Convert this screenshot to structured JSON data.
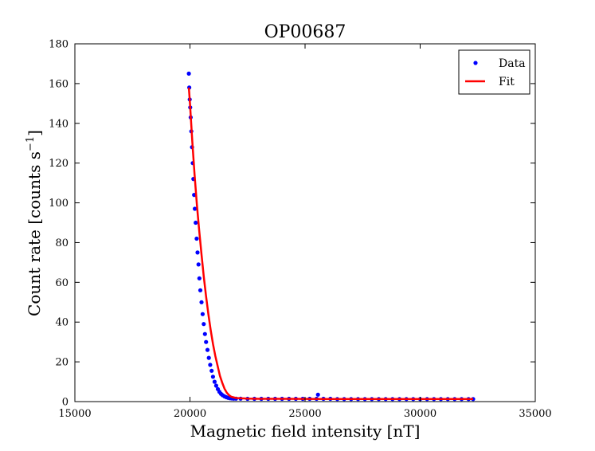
{
  "chart_data": {
    "type": "scatter",
    "title": "OP00687",
    "xlabel": "Magnetic field intensity [nT]",
    "ylabel_main": "Count rate [counts s",
    "ylabel_sup": "−1",
    "ylabel_end": "]",
    "xlim": [
      15000,
      35000
    ],
    "ylim": [
      0,
      180
    ],
    "xticks": [
      15000,
      20000,
      25000,
      30000,
      35000
    ],
    "yticks": [
      0,
      20,
      40,
      60,
      80,
      100,
      120,
      140,
      160,
      180
    ],
    "legend_position": "top-right",
    "series": [
      {
        "name": "Data",
        "kind": "points",
        "color": "#0000ff",
        "x": [
          19950,
          19970,
          19990,
          20010,
          20030,
          20060,
          20090,
          20120,
          20150,
          20180,
          20210,
          20250,
          20290,
          20330,
          20370,
          20410,
          20450,
          20500,
          20550,
          20600,
          20650,
          20700,
          20760,
          20820,
          20880,
          20940,
          21000,
          21070,
          21140,
          21210,
          21280,
          21350,
          21420,
          21500,
          21580,
          21660,
          21740,
          21820,
          21900,
          22000,
          22200,
          22500,
          22800,
          23100,
          23400,
          23700,
          24000,
          24300,
          24600,
          24900,
          25200,
          25500,
          25560,
          25800,
          26100,
          26400,
          26700,
          27000,
          27300,
          27600,
          27900,
          28200,
          28500,
          28800,
          29100,
          29400,
          29700,
          30000,
          30300,
          30600,
          30900,
          31200,
          31500,
          31800,
          32100,
          32300
        ],
        "y": [
          165,
          158,
          152,
          148,
          143,
          136,
          128,
          120,
          112,
          104,
          97,
          90,
          82,
          75,
          69,
          62,
          56,
          50,
          44,
          39,
          34,
          30,
          26,
          22,
          18.5,
          15.5,
          12.5,
          10,
          8,
          6.3,
          4.9,
          3.9,
          3.2,
          2.6,
          2.2,
          1.9,
          1.7,
          1.6,
          1.5,
          1.5,
          1.5,
          1.4,
          1.4,
          1.4,
          1.4,
          1.4,
          1.4,
          1.4,
          1.4,
          1.4,
          1.4,
          1.4,
          3.5,
          1.4,
          1.4,
          1.3,
          1.3,
          1.3,
          1.3,
          1.3,
          1.3,
          1.3,
          1.3,
          1.3,
          1.3,
          1.3,
          1.3,
          1.3,
          1.3,
          1.3,
          1.3,
          1.3,
          1.3,
          1.3,
          1.3,
          1.3
        ]
      },
      {
        "name": "Fit",
        "kind": "line",
        "color": "#ff0000",
        "x": [
          19950,
          20000,
          20100,
          20200,
          20300,
          20400,
          20500,
          20600,
          20700,
          20800,
          20900,
          21000,
          21100,
          21200,
          21300,
          21400,
          21500,
          21600,
          21700,
          21800,
          22000,
          22500,
          23000,
          24000,
          26000,
          28000,
          30000,
          32300
        ],
        "y": [
          158,
          150,
          131,
          114,
          99,
          86,
          74,
          63,
          53,
          44,
          36,
          29,
          23,
          18,
          13,
          9.5,
          6.5,
          4.5,
          3.2,
          2.4,
          1.8,
          1.5,
          1.4,
          1.4,
          1.3,
          1.3,
          1.3,
          1.3
        ]
      }
    ]
  }
}
